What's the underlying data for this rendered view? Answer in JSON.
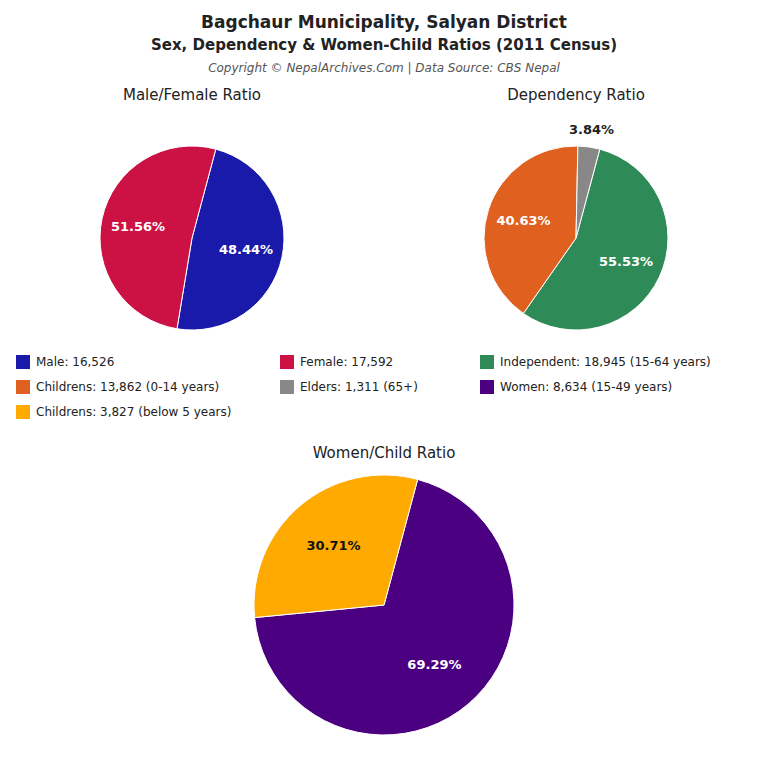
{
  "title": "Bagchaur Municipality, Salyan District",
  "subtitle": "Sex, Dependency & Women-Child Ratios (2011 Census)",
  "annotations": [
    "Copyright © NepalArchives.Com | Data Source: CBS Nepal"
  ],
  "chart_data": [
    {
      "type": "pie",
      "title": "Male/Female Ratio",
      "categories": [
        "Male: 16,526",
        "Female: 17,592"
      ],
      "values": [
        48.44,
        51.56
      ],
      "value_labels": [
        "48.44%",
        "51.56%"
      ],
      "colors": [
        "#1a1aaa",
        "#cc1144"
      ],
      "data_labels": true,
      "legend": "center"
    },
    {
      "type": "pie",
      "title": "Dependency Ratio",
      "categories": [
        "Independent: 18,945 (15-64 years)",
        "Childrens: 13,862 (0-14 years)",
        "Elders: 1,311 (65+)"
      ],
      "values": [
        55.53,
        40.63,
        3.84
      ],
      "value_labels": [
        "55.53%",
        "40.63%",
        "3.84%"
      ],
      "colors": [
        "#2e8b57",
        "#e06020",
        "#888888"
      ],
      "data_labels": true,
      "legend": "center"
    },
    {
      "type": "pie",
      "title": "Women/Child Ratio",
      "categories": [
        "Women: 8,634 (15-49 years)",
        "Childrens: 3,827 (below 5 years)"
      ],
      "values": [
        69.29,
        30.71
      ],
      "value_labels": [
        "69.29%",
        "30.71%"
      ],
      "colors": [
        "#4B0082",
        "#ffaa00"
      ],
      "data_labels": true,
      "legend": "center"
    }
  ]
}
